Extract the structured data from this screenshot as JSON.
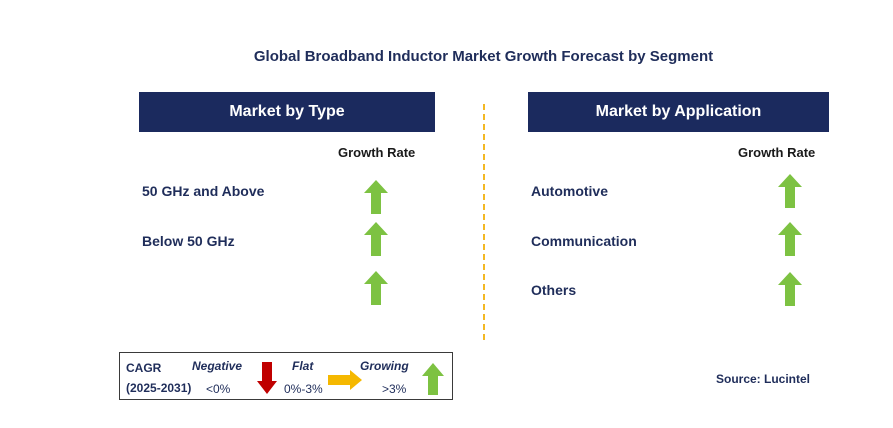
{
  "title": "Global Broadband Inductor Market Growth Forecast by Segment",
  "left_panel": {
    "header": "Market by Type",
    "growth_rate_label": "Growth Rate",
    "items": [
      {
        "label": "50 GHz and Above",
        "trend": "growing"
      },
      {
        "label": "Below 50 GHz",
        "trend": "growing"
      },
      {
        "label": "",
        "trend": "growing"
      }
    ]
  },
  "right_panel": {
    "header": "Market by Application",
    "growth_rate_label": "Growth Rate",
    "items": [
      {
        "label": "Automotive",
        "trend": "growing"
      },
      {
        "label": "Communication",
        "trend": "growing"
      },
      {
        "label": "Others",
        "trend": "growing"
      }
    ]
  },
  "legend": {
    "cagr_label": "CAGR",
    "period": "(2025-2031)",
    "negative": {
      "label": "Negative",
      "range": "<0%",
      "icon": "down-arrow-icon",
      "color": "#c00000"
    },
    "flat": {
      "label": "Flat",
      "range": "0%-3%",
      "icon": "right-arrow-icon",
      "color": "#f5b800"
    },
    "growing": {
      "label": "Growing",
      "range": ">3%",
      "icon": "up-arrow-icon",
      "color": "#7dc242"
    }
  },
  "source": "Source: Lucintel"
}
